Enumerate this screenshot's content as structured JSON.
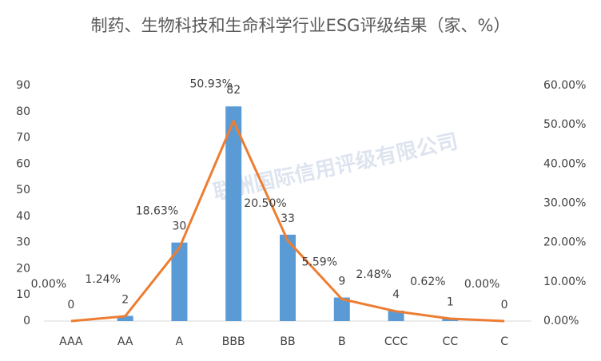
{
  "chart_data": {
    "type": "bar-line",
    "title": "制药、生物科技和生命科学行业ESG评级结果（家、%）",
    "watermark": "联洲国际信用评级有限公司",
    "categories": [
      "AAA",
      "AA",
      "A",
      "BBB",
      "BB",
      "B",
      "CCC",
      "CC",
      "C"
    ],
    "series": [
      {
        "type": "bar",
        "color": "#5b9bd5",
        "values": [
          0,
          2,
          30,
          82,
          33,
          9,
          4,
          1,
          0
        ]
      },
      {
        "type": "line",
        "axis": "y2",
        "color": "#ed7d31",
        "values": [
          0,
          1.24,
          18.63,
          50.93,
          20.5,
          5.59,
          2.48,
          0.62,
          0
        ],
        "value_labels": [
          "0.00%",
          "1.24%",
          "18.63%",
          "50.93%",
          "20.50%",
          "5.59%",
          "2.48%",
          "0.62%",
          "0.00%"
        ]
      }
    ],
    "ylim": [
      0,
      90
    ],
    "yticks": [
      0,
      10,
      20,
      30,
      40,
      50,
      60,
      70,
      80,
      90
    ],
    "y2lim": [
      0,
      60
    ],
    "y2ticks": [
      {
        "value": 0,
        "label": "0.00%"
      },
      {
        "value": 10,
        "label": "10.00%"
      },
      {
        "value": 20,
        "label": "20.00%"
      },
      {
        "value": 30,
        "label": "30.00%"
      },
      {
        "value": 40,
        "label": "40.00%"
      },
      {
        "value": 50,
        "label": "50.00%"
      },
      {
        "value": 60,
        "label": "60.00%"
      }
    ],
    "grid": false
  }
}
